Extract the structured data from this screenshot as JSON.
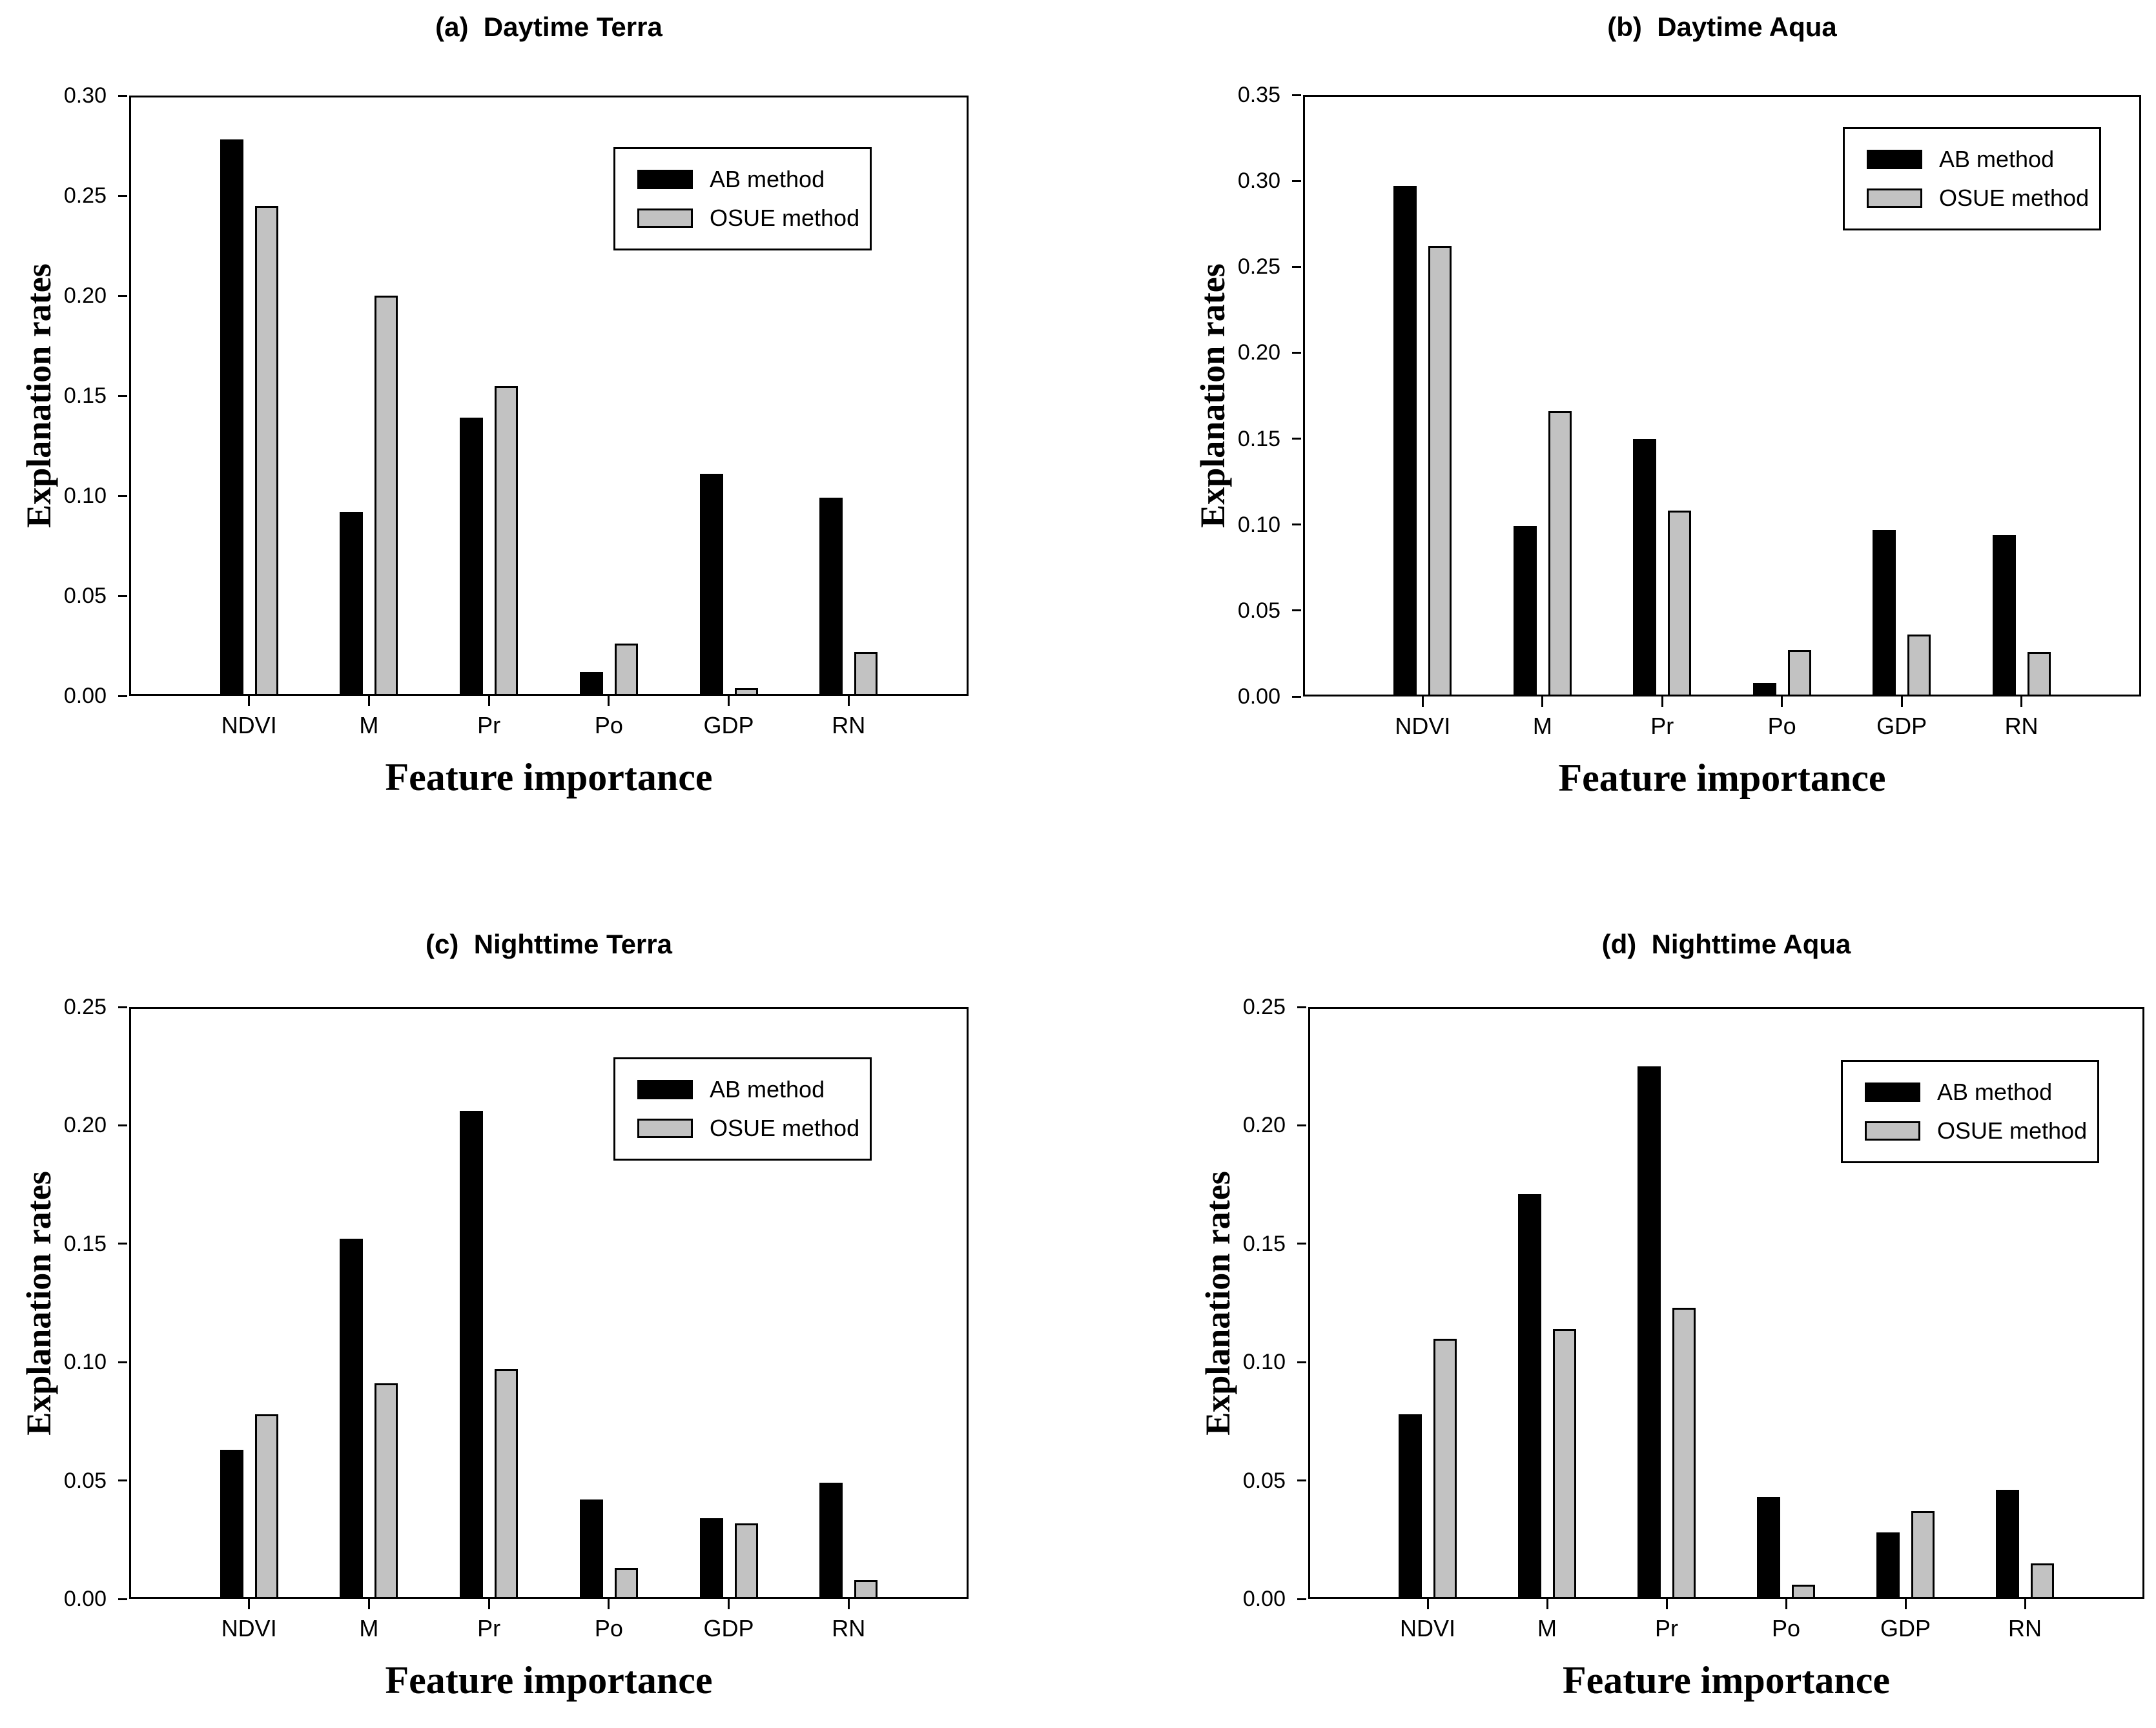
{
  "chart_data": [
    {
      "type": "bar",
      "title": "(a)  Daytime Terra",
      "categories": [
        "NDVI",
        "M",
        "Pr",
        "Po",
        "GDP",
        "RN"
      ],
      "series": [
        {
          "name": "AB method",
          "color": "#000000",
          "values": [
            0.278,
            0.092,
            0.139,
            0.012,
            0.111,
            0.099
          ]
        },
        {
          "name": "OSUE method",
          "color": "#c2c2c2",
          "values": [
            0.245,
            0.2,
            0.155,
            0.026,
            0.004,
            0.022
          ]
        }
      ],
      "xlabel": "Feature importance",
      "ylabel": "Explanation rates",
      "ylim": [
        0,
        0.3
      ],
      "ytick_step": 0.05,
      "grid": false,
      "legend_position": "upper right",
      "bar_border_color": "#000000"
    },
    {
      "type": "bar",
      "title": "(b)  Daytime Aqua",
      "categories": [
        "NDVI",
        "M",
        "Pr",
        "Po",
        "GDP",
        "RN"
      ],
      "series": [
        {
          "name": "AB method",
          "color": "#000000",
          "values": [
            0.297,
            0.099,
            0.15,
            0.008,
            0.097,
            0.094
          ]
        },
        {
          "name": "OSUE method",
          "color": "#c2c2c2",
          "values": [
            0.262,
            0.166,
            0.108,
            0.027,
            0.036,
            0.026
          ]
        }
      ],
      "xlabel": "Feature importance",
      "ylabel": "Explanation rates",
      "ylim": [
        0,
        0.35
      ],
      "ytick_step": 0.05,
      "grid": false,
      "legend_position": "upper right",
      "bar_border_color": "#000000"
    },
    {
      "type": "bar",
      "title": "(c)  Nighttime Terra",
      "categories": [
        "NDVI",
        "M",
        "Pr",
        "Po",
        "GDP",
        "RN"
      ],
      "series": [
        {
          "name": "AB method",
          "color": "#000000",
          "values": [
            0.063,
            0.152,
            0.206,
            0.042,
            0.034,
            0.049
          ]
        },
        {
          "name": "OSUE method",
          "color": "#c2c2c2",
          "values": [
            0.078,
            0.091,
            0.097,
            0.013,
            0.032,
            0.008
          ]
        }
      ],
      "xlabel": "Feature importance",
      "ylabel": "Explanation rates",
      "ylim": [
        0,
        0.25
      ],
      "ytick_step": 0.05,
      "grid": false,
      "legend_position": "upper right",
      "bar_border_color": "#000000"
    },
    {
      "type": "bar",
      "title": "(d)  Nighttime Aqua",
      "categories": [
        "NDVI",
        "M",
        "Pr",
        "Po",
        "GDP",
        "RN"
      ],
      "series": [
        {
          "name": "AB method",
          "color": "#000000",
          "values": [
            0.078,
            0.171,
            0.225,
            0.043,
            0.028,
            0.046
          ]
        },
        {
          "name": "OSUE method",
          "color": "#c2c2c2",
          "values": [
            0.11,
            0.114,
            0.123,
            0.006,
            0.037,
            0.015
          ]
        }
      ],
      "xlabel": "Feature importance",
      "ylabel": "Explanation rates",
      "ylim": [
        0,
        0.25
      ],
      "ytick_step": 0.05,
      "grid": false,
      "legend_position": "upper right",
      "bar_border_color": "#000000"
    }
  ]
}
